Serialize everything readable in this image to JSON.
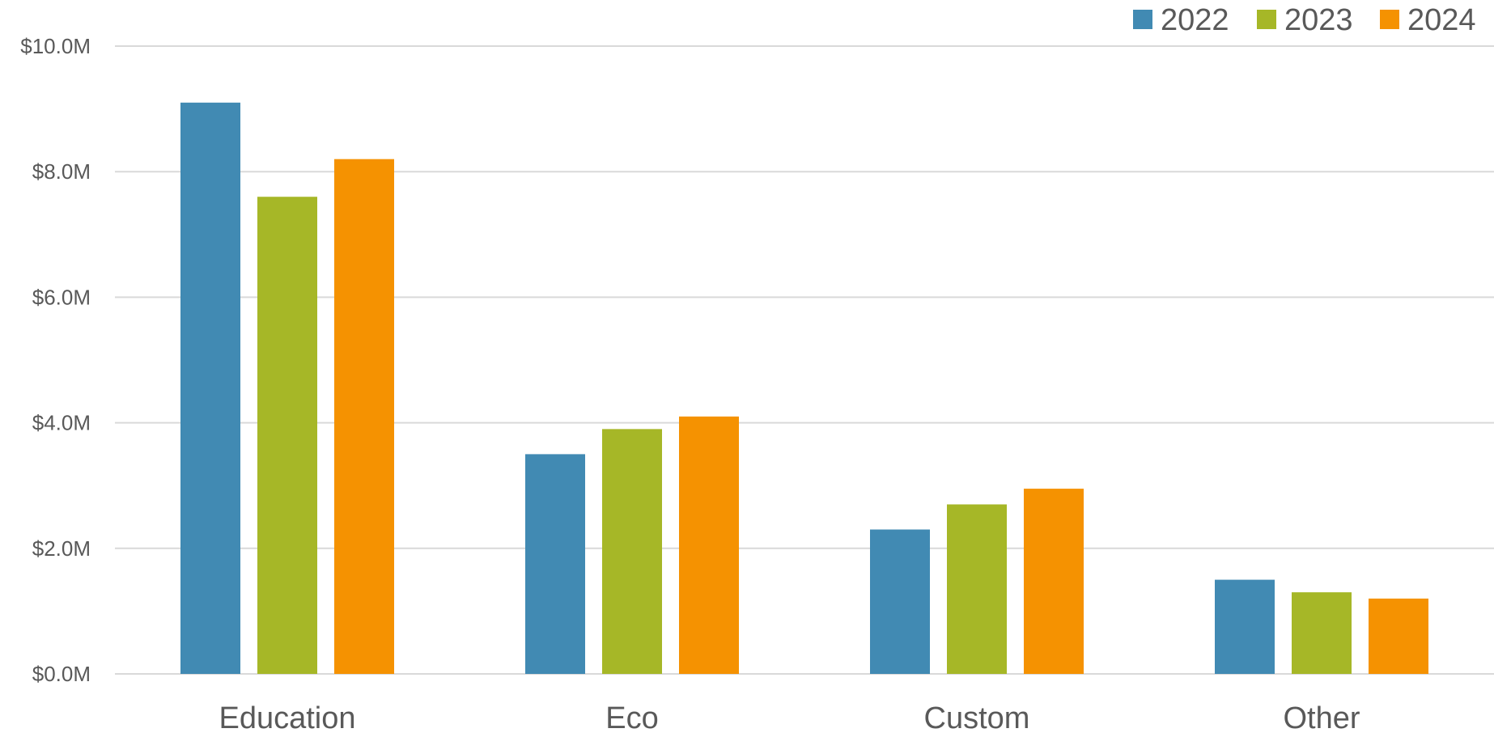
{
  "chart_data": {
    "type": "bar",
    "title": "",
    "xlabel": "",
    "ylabel": "",
    "categories": [
      "Education",
      "Eco",
      "Custom",
      "Other"
    ],
    "series": [
      {
        "name": "2022",
        "color": "#418ab3",
        "values": [
          9.1,
          3.5,
          2.3,
          1.5
        ]
      },
      {
        "name": "2023",
        "color": "#a6b727",
        "values": [
          7.6,
          3.9,
          2.7,
          1.3
        ]
      },
      {
        "name": "2024",
        "color": "#f59201",
        "values": [
          8.2,
          4.1,
          2.95,
          1.2
        ]
      }
    ],
    "ylim": [
      0,
      10
    ],
    "yticks": [
      0,
      2,
      4,
      6,
      8,
      10
    ],
    "ytick_labels": [
      "$0.0M",
      "$2.0M",
      "$4.0M",
      "$6.0M",
      "$8.0M",
      "$10.0M"
    ],
    "grid": true,
    "legend_position": "top-right"
  }
}
